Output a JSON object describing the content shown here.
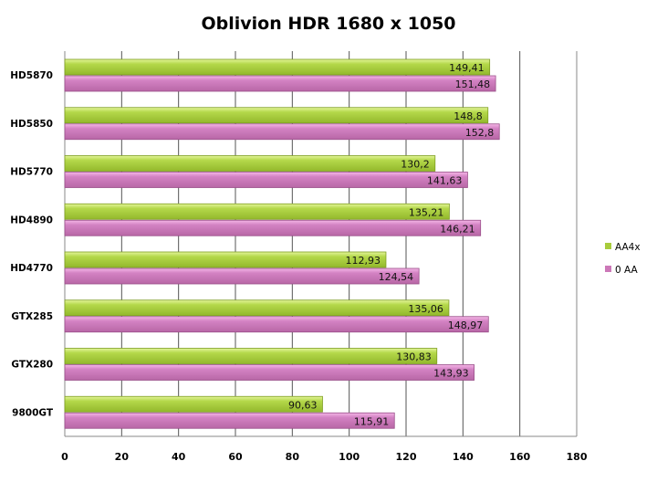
{
  "chart_data": {
    "type": "bar",
    "orientation": "horizontal",
    "title": "Oblivion HDR 1680 x 1050",
    "xlabel": "",
    "ylabel": "",
    "categories": [
      "HD5870",
      "HD5850",
      "HD5770",
      "HD4890",
      "HD4770",
      "GTX285",
      "GTX280",
      "9800GT"
    ],
    "series": [
      {
        "name": "AA4x",
        "color": "#a8cc3c",
        "values": [
          149.41,
          148.8,
          130.2,
          135.21,
          112.93,
          135.06,
          130.83,
          90.63
        ],
        "labels": [
          "149,41",
          "148,8",
          "130,2",
          "135,21",
          "112,93",
          "135,06",
          "130,83",
          "90,63"
        ]
      },
      {
        "name": "0 AA",
        "color": "#cc78b8",
        "values": [
          151.48,
          152.8,
          141.63,
          146.21,
          124.54,
          148.97,
          143.93,
          115.91
        ],
        "labels": [
          "151,48",
          "152,8",
          "141,63",
          "146,21",
          "124,54",
          "148,97",
          "143,93",
          "115,91"
        ]
      }
    ],
    "xlim": [
      0,
      180
    ],
    "xticks": [
      "0",
      "20",
      "40",
      "60",
      "80",
      "100",
      "120",
      "140",
      "160",
      "180"
    ],
    "grid": true,
    "legend": "right"
  }
}
